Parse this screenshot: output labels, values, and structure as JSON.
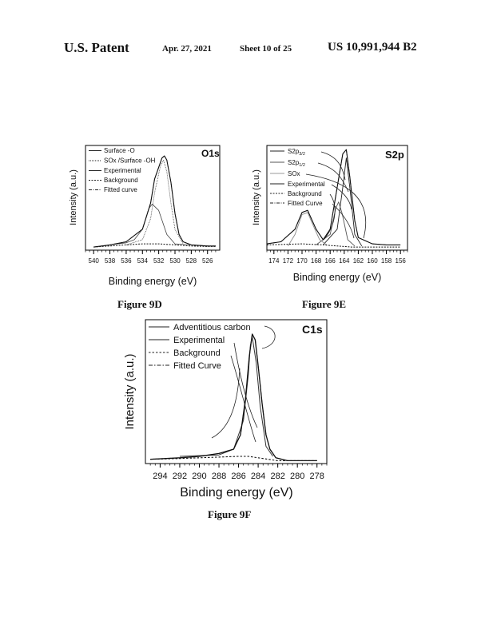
{
  "header": {
    "left": "U.S. Patent",
    "date": "Apr. 27, 2021",
    "sheet": "Sheet 10 of 25",
    "number": "US 10,991,944 B2"
  },
  "figures": {
    "fig9d": {
      "caption": "Figure 9D",
      "tag": "O1s",
      "ylabel": "Intensity (a.u.)",
      "xlabel": "Binding energy (eV)",
      "legend": [
        "Surface -O",
        "SOx /Surface -OH",
        "Experimental",
        "Background",
        "Fitted curve"
      ],
      "ticks": [
        "540",
        "538",
        "536",
        "534",
        "532",
        "530",
        "528",
        "526"
      ]
    },
    "fig9e": {
      "caption": "Figure 9E",
      "tag": "S2p",
      "ylabel": "Intensity (a.u.)",
      "xlabel": "Binding energy (eV)",
      "legend": {
        "s2p32_main": "S2p",
        "s2p32_sub": "3/2",
        "s2p12_main": "S2p",
        "s2p12_sub": "1/2",
        "sox": "SOx",
        "experimental": "Experimental",
        "background": "Background",
        "fitted": "Fitted Curve"
      },
      "ticks": [
        "174",
        "172",
        "170",
        "168",
        "166",
        "164",
        "162",
        "160",
        "158",
        "156"
      ]
    },
    "fig9f": {
      "caption": "Figure 9F",
      "tag": "C1s",
      "ylabel": "Intensity (a.u.)",
      "xlabel": "Binding energy (eV)",
      "legend": [
        "Adventitious carbon",
        "Experimental",
        "Background",
        "Fitted Curve"
      ],
      "ticks": [
        "294",
        "292",
        "290",
        "288",
        "286",
        "284",
        "282",
        "280",
        "278"
      ]
    }
  },
  "chart_data": [
    {
      "type": "line",
      "title": "O1s",
      "xlabel": "Binding energy (eV)",
      "ylabel": "Intensity (a.u.)",
      "xlim": [
        541,
        524.5
      ],
      "x_reversed": true,
      "series": [
        {
          "name": "Surface -O",
          "x": [
            538,
            536,
            535,
            534,
            533.2,
            532.8,
            532,
            531,
            530,
            528
          ],
          "y": [
            0.05,
            0.07,
            0.1,
            0.2,
            0.4,
            0.44,
            0.38,
            0.15,
            0.06,
            0.05
          ]
        },
        {
          "name": "SOx /Surface -OH",
          "x": [
            536,
            534,
            533,
            532.5,
            531.8,
            531.4,
            531,
            530.5,
            530,
            529
          ],
          "y": [
            0.05,
            0.1,
            0.3,
            0.55,
            0.8,
            0.86,
            0.75,
            0.45,
            0.2,
            0.06
          ]
        },
        {
          "name": "Experimental",
          "x": [
            540,
            538,
            536,
            534,
            533,
            532.5,
            531.6,
            531.3,
            531,
            530.5,
            530,
            529.5,
            529,
            528,
            526,
            525
          ],
          "y": [
            0.03,
            0.05,
            0.08,
            0.2,
            0.45,
            0.68,
            0.88,
            0.9,
            0.86,
            0.65,
            0.35,
            0.15,
            0.08,
            0.05,
            0.04,
            0.04
          ]
        },
        {
          "name": "Background",
          "x": [
            540,
            536,
            534,
            532,
            530,
            528,
            526,
            525
          ],
          "y": [
            0.03,
            0.05,
            0.06,
            0.06,
            0.05,
            0.04,
            0.035,
            0.035
          ]
        },
        {
          "name": "Fitted curve",
          "x": [
            540,
            538,
            536,
            534,
            533,
            532.5,
            531.6,
            531.3,
            531,
            530.5,
            530,
            529.5,
            529,
            528,
            526,
            525
          ],
          "y": [
            0.03,
            0.05,
            0.08,
            0.2,
            0.45,
            0.68,
            0.88,
            0.9,
            0.86,
            0.65,
            0.35,
            0.15,
            0.08,
            0.05,
            0.04,
            0.04
          ]
        }
      ]
    },
    {
      "type": "line",
      "title": "S2p",
      "xlabel": "Binding energy (eV)",
      "ylabel": "Intensity (a.u.)",
      "xlim": [
        175,
        155
      ],
      "x_reversed": true,
      "series": [
        {
          "name": "S2p3/2",
          "x": [
            167,
            165,
            164.2,
            163.7,
            163.2,
            162.5,
            161.5
          ],
          "y": [
            0.05,
            0.2,
            0.6,
            0.88,
            0.6,
            0.15,
            0.04
          ]
        },
        {
          "name": "S2p1/2",
          "x": [
            168,
            166,
            165.2,
            164.8,
            164.3,
            163.5,
            162.5
          ],
          "y": [
            0.05,
            0.15,
            0.4,
            0.46,
            0.35,
            0.1,
            0.04
          ]
        },
        {
          "name": "SOx",
          "x": [
            172,
            171,
            170,
            169.2,
            168.5,
            167.5,
            166.5
          ],
          "y": [
            0.04,
            0.15,
            0.34,
            0.36,
            0.25,
            0.1,
            0.05
          ]
        },
        {
          "name": "Experimental",
          "x": [
            175,
            173,
            171,
            170,
            169.2,
            168,
            167,
            166,
            165,
            164.2,
            163.7,
            163.2,
            162.5,
            162,
            160,
            158,
            156
          ],
          "y": [
            0.06,
            0.08,
            0.2,
            0.36,
            0.38,
            0.2,
            0.1,
            0.2,
            0.6,
            0.92,
            0.96,
            0.7,
            0.28,
            0.12,
            0.06,
            0.05,
            0.05
          ]
        },
        {
          "name": "Background",
          "x": [
            175,
            170,
            167,
            165,
            163,
            160,
            156
          ],
          "y": [
            0.05,
            0.06,
            0.05,
            0.04,
            0.03,
            0.03,
            0.03
          ]
        },
        {
          "name": "Fitted Curve",
          "x": [
            175,
            173,
            171,
            170,
            169.2,
            168,
            167,
            166,
            165,
            164.2,
            163.7,
            163.2,
            162.5,
            162,
            160,
            158,
            156
          ],
          "y": [
            0.06,
            0.08,
            0.2,
            0.36,
            0.38,
            0.2,
            0.1,
            0.2,
            0.6,
            0.92,
            0.96,
            0.7,
            0.28,
            0.12,
            0.06,
            0.05,
            0.05
          ]
        }
      ]
    },
    {
      "type": "line",
      "title": "C1s",
      "xlabel": "Binding energy (eV)",
      "ylabel": "Intensity (a.u.)",
      "xlim": [
        295.5,
        277
      ],
      "x_reversed": true,
      "series": [
        {
          "name": "Adventitious carbon",
          "x": [
            292,
            288,
            286.5,
            285.5,
            285,
            284.8,
            284.6,
            284.2,
            283.8,
            283.2,
            282.5
          ],
          "y": [
            0.05,
            0.06,
            0.1,
            0.3,
            0.62,
            0.82,
            0.88,
            0.7,
            0.4,
            0.12,
            0.05
          ]
        },
        {
          "name": "Experimental",
          "x": [
            295,
            292,
            290,
            288,
            286.5,
            285.8,
            285.3,
            284.9,
            284.6,
            284.3,
            284,
            283.6,
            283.2,
            282.8,
            282.2,
            281,
            279,
            278
          ],
          "y": [
            0.03,
            0.04,
            0.05,
            0.07,
            0.1,
            0.2,
            0.45,
            0.75,
            0.9,
            0.86,
            0.68,
            0.42,
            0.2,
            0.1,
            0.04,
            0.02,
            0.02,
            0.02
          ]
        },
        {
          "name": "Background",
          "x": [
            295,
            292,
            290,
            288,
            286,
            285,
            284,
            283,
            282,
            280,
            278
          ],
          "y": [
            0.03,
            0.035,
            0.04,
            0.045,
            0.05,
            0.05,
            0.04,
            0.03,
            0.02,
            0.02,
            0.02
          ]
        },
        {
          "name": "Fitted Curve",
          "x": [
            295,
            292,
            290,
            288,
            286.5,
            285.8,
            285.3,
            284.9,
            284.6,
            284.3,
            284,
            283.6,
            283.2,
            282.8,
            282.2,
            281,
            279,
            278
          ],
          "y": [
            0.03,
            0.04,
            0.05,
            0.07,
            0.1,
            0.2,
            0.45,
            0.75,
            0.9,
            0.86,
            0.68,
            0.42,
            0.2,
            0.1,
            0.04,
            0.02,
            0.02,
            0.02
          ]
        }
      ]
    }
  ]
}
